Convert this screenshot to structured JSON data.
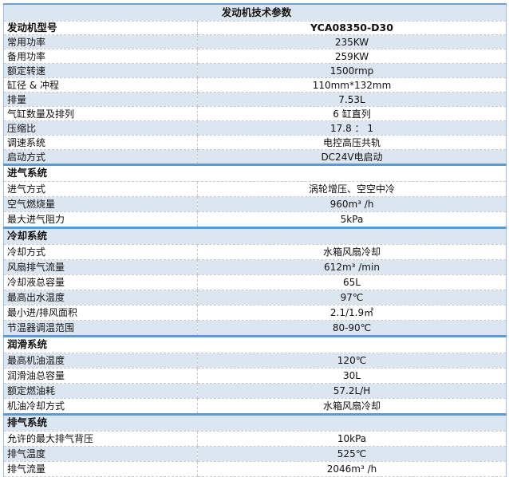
{
  "title": "发动机技术参数",
  "model": {
    "label": "发动机型号",
    "value": "YCA08350-D30"
  },
  "sections": [
    {
      "header": "",
      "rows": [
        {
          "label": "常用功率",
          "value": "235KW",
          "shade": true
        },
        {
          "label": "备用功率",
          "value": "259KW",
          "shade": false
        },
        {
          "label": "额定转速",
          "value": "1500rmp",
          "shade": true
        },
        {
          "label": "缸径 & 冲程",
          "value": "110mm*132mm",
          "shade": false
        },
        {
          "label": "排量",
          "value": "7.53L",
          "shade": true
        },
        {
          "label": "气缸数量及排列",
          "value": "6 缸直列",
          "shade": false
        },
        {
          "label": "压缩比",
          "value": "17.8 ： 1",
          "shade": true
        },
        {
          "label": "调速系统",
          "value": "电控高压共轨",
          "shade": false
        },
        {
          "label": "启动方式",
          "value": "DC24V电启动",
          "shade": true
        }
      ]
    },
    {
      "header": "进气系统",
      "header_shade": false,
      "rows": [
        {
          "label": "进气方式",
          "value": "涡轮增压、空空中冷",
          "shade": false
        },
        {
          "label": "空气燃烧量",
          "value": "960m³ /h",
          "shade": true
        },
        {
          "label": "最大进气阻力",
          "value": "5kPa",
          "shade": false
        }
      ]
    },
    {
      "header": "冷却系统",
      "header_shade": true,
      "rows": [
        {
          "label": "冷却方式",
          "value": "水箱风扇冷却",
          "shade": false
        },
        {
          "label": "风扇排气流量",
          "value": "612m³  /min",
          "shade": true
        },
        {
          "label": "冷却液总容量",
          "value": "65L",
          "shade": false
        },
        {
          "label": "最高出水温度",
          "value": "97℃",
          "shade": true
        },
        {
          "label": "最小进/排风面积",
          "value": "2.1/1.9㎡",
          "shade": false
        },
        {
          "label": "节温器调温范围",
          "value": "80-90℃",
          "shade": true
        }
      ]
    },
    {
      "header": "润滑系统",
      "header_shade": false,
      "rows": [
        {
          "label": "最高机油温度",
          "value": "120℃",
          "shade": true
        },
        {
          "label": "润滑油总容量",
          "value": "30L",
          "shade": false
        },
        {
          "label": "额定燃油耗",
          "value": "57.2L/H",
          "shade": true
        },
        {
          "label": "机油冷却方式",
          "value": "水箱风扇冷却",
          "shade": false
        }
      ]
    },
    {
      "header": "排气系统",
      "header_shade": true,
      "rows": [
        {
          "label": "允许的最大排气背压",
          "value": "10kPa",
          "shade": false
        },
        {
          "label": "排气温度",
          "value": "525℃",
          "shade": true
        },
        {
          "label": "排气流量",
          "value": "2046m³ /h",
          "shade": false
        }
      ]
    }
  ]
}
